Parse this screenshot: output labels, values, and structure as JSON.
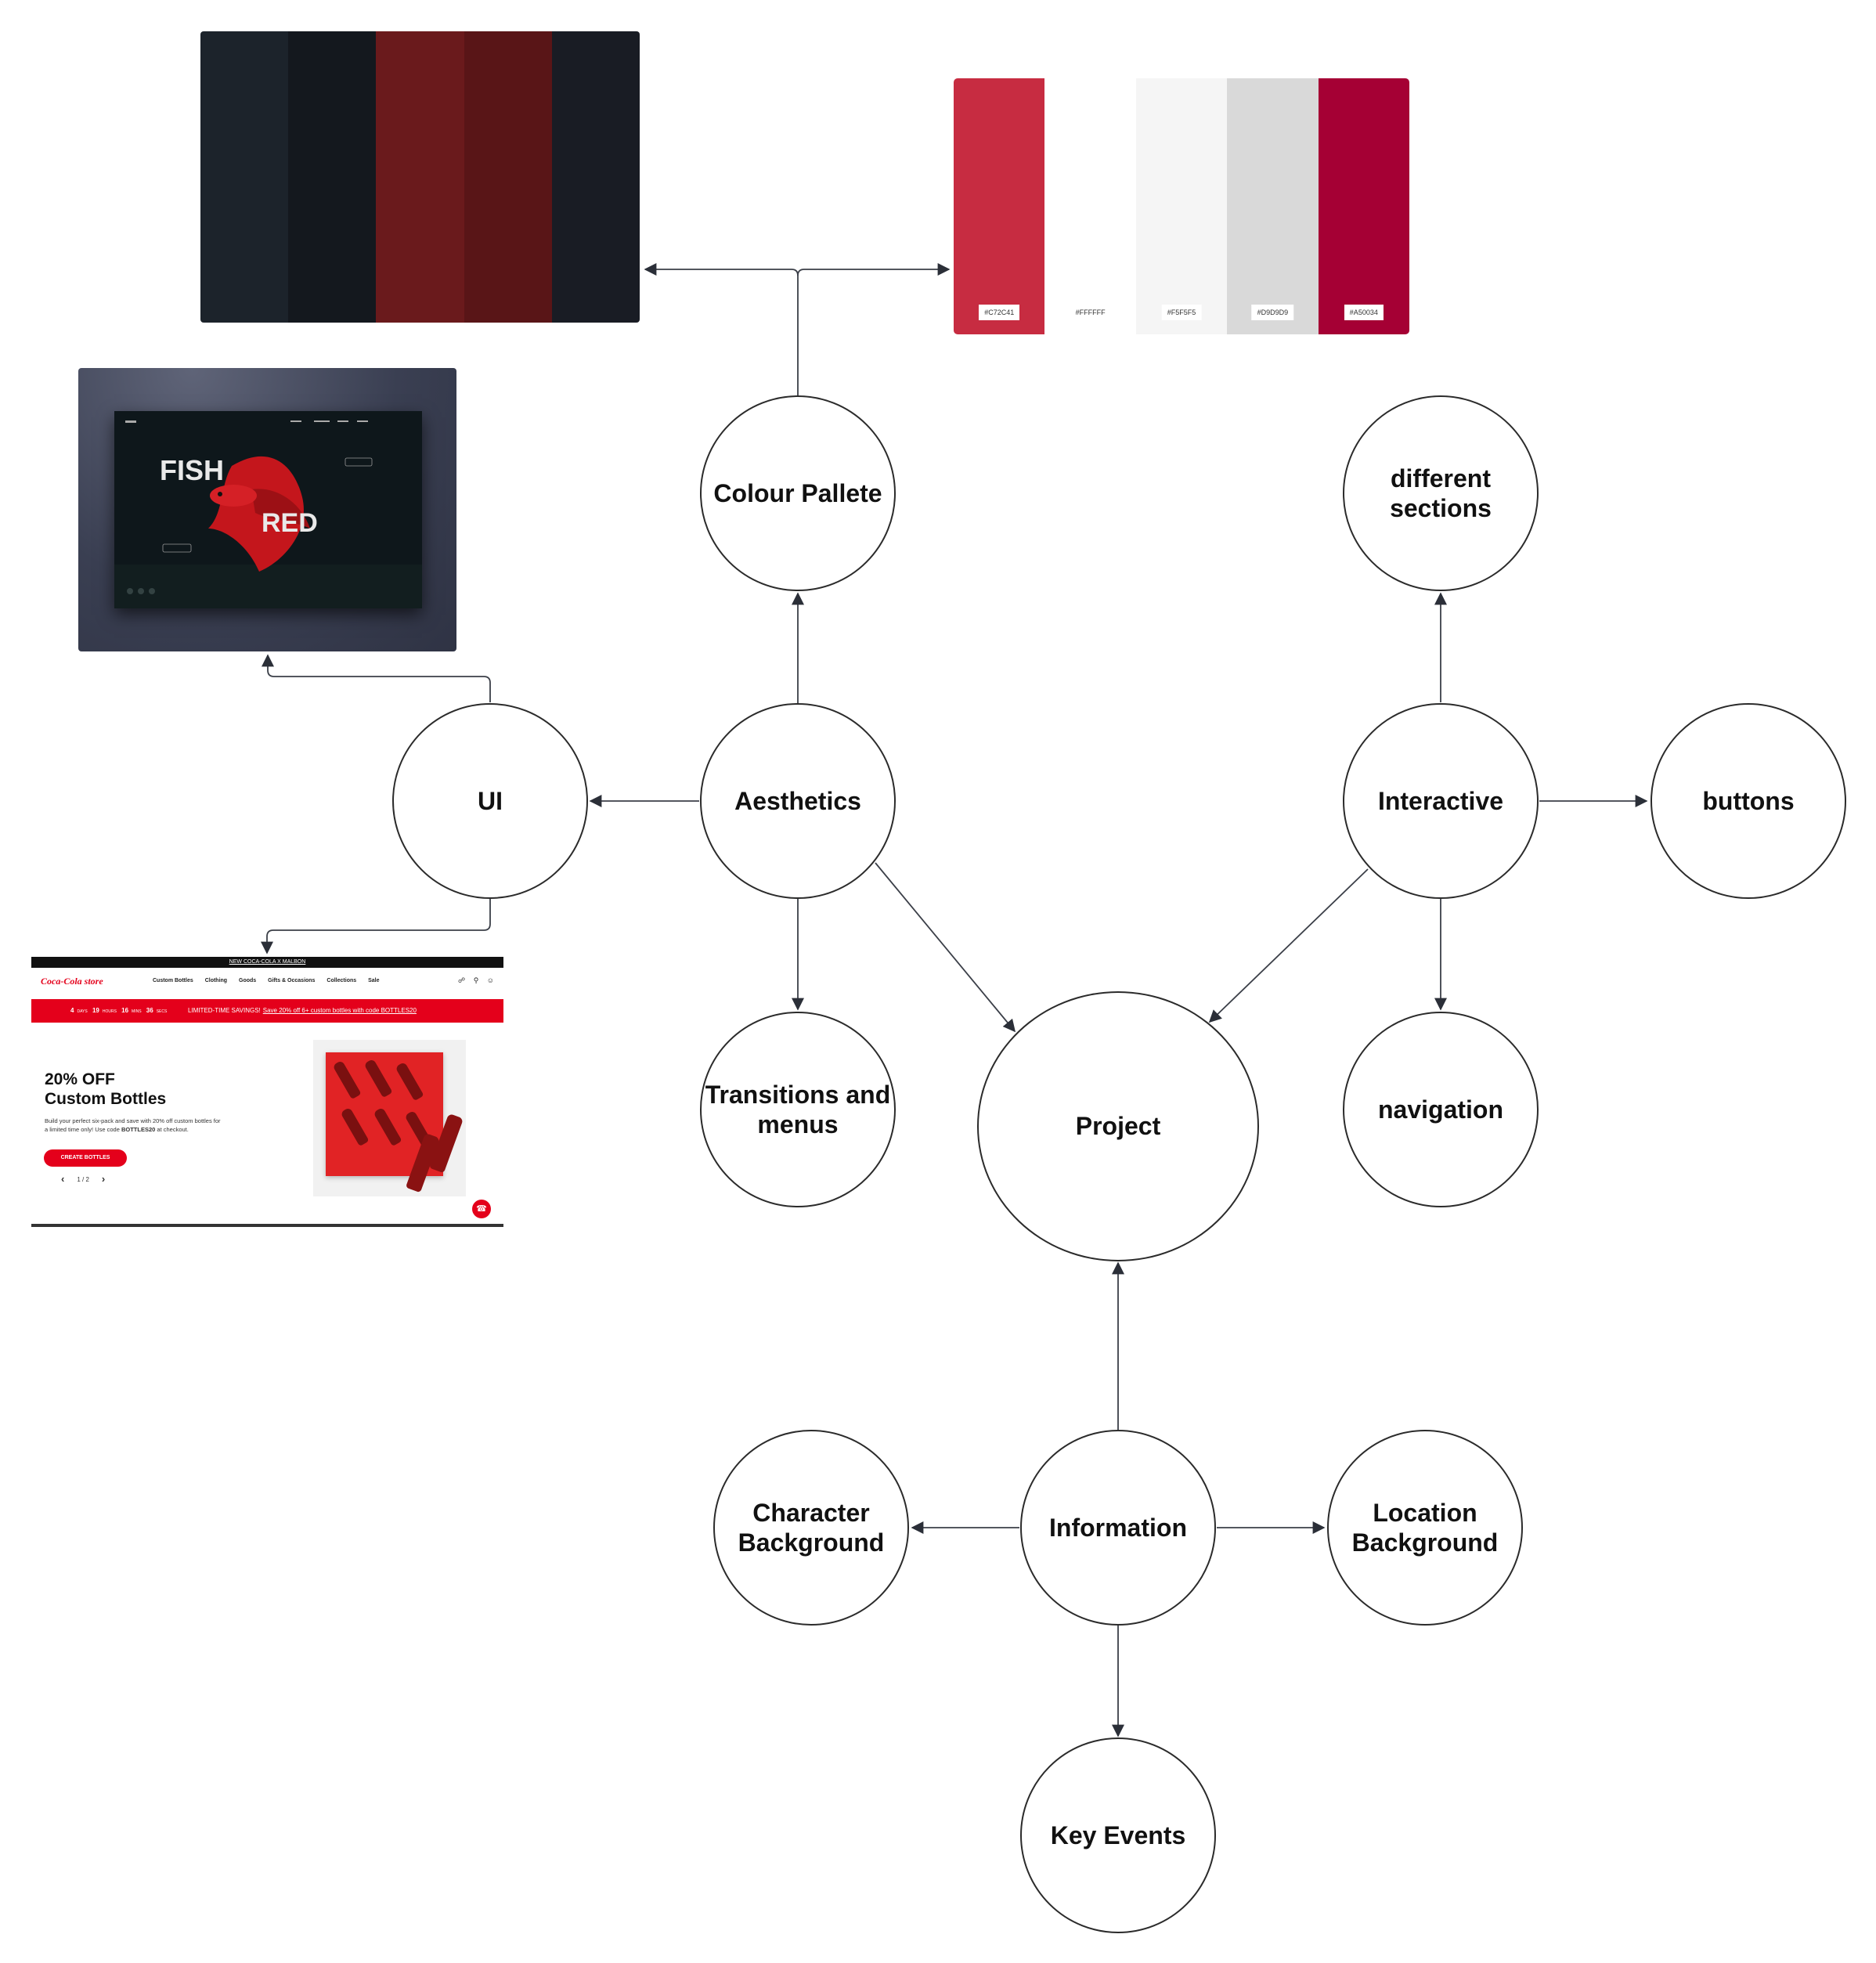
{
  "nodes": {
    "colour_pallete": "Colour Pallete",
    "different_sections": "different\nsections",
    "ui": "UI",
    "aesthetics": "Aesthetics",
    "interactive": "Interactive",
    "buttons": "buttons",
    "transitions_menus": "Transitions and\nmenus",
    "project": "Project",
    "navigation": "navigation",
    "character_background": "Character\nBackground",
    "information": "Information",
    "location_background": "Location\nBackground",
    "key_events": "Key Events"
  },
  "palette_dark": {
    "colors": [
      "#1c232b",
      "#14181e",
      "#6a1a1c",
      "#591517",
      "#191c24"
    ]
  },
  "palette_red": {
    "swatches": [
      {
        "color": "#C72C41",
        "label": "#C72C41"
      },
      {
        "color": "#FFFFFF",
        "label": "#FFFFFF"
      },
      {
        "color": "#F5F5F5",
        "label": "#F5F5F5"
      },
      {
        "color": "#D9D9D9",
        "label": "#D9D9D9"
      },
      {
        "color": "#A50034",
        "label": "#A50034"
      }
    ]
  },
  "fish_mockup": {
    "title_fish": "FISH",
    "title_red": "RED"
  },
  "coke_mockup": {
    "announcement": "NEW COCA-COLA X MALBON",
    "logo": "Coca-Cola store",
    "nav_links": [
      "Custom Bottles",
      "Clothing",
      "Goods",
      "Gifts & Occasions",
      "Collections",
      "Sale"
    ],
    "countdown": {
      "d": "4",
      "d_unit": "DAYS",
      "h": "19",
      "h_unit": "HOURS",
      "m": "16",
      "m_unit": "MINS",
      "s": "36",
      "s_unit": "SECS"
    },
    "promo_lead": "LIMITED-TIME SAVINGS!",
    "promo_link": "Save 20% off 6+ custom bottles with code BOTTLES20",
    "headline_1": "20% OFF",
    "headline_2": "Custom Bottles",
    "subtext_1": "Build your perfect six-pack and save with 20% off custom bottles for a limited time only! Use code",
    "subtext_code": "BOTTLES20",
    "subtext_2": "at checkout.",
    "cta": "CREATE BOTTLES",
    "pager": "1 / 2"
  }
}
